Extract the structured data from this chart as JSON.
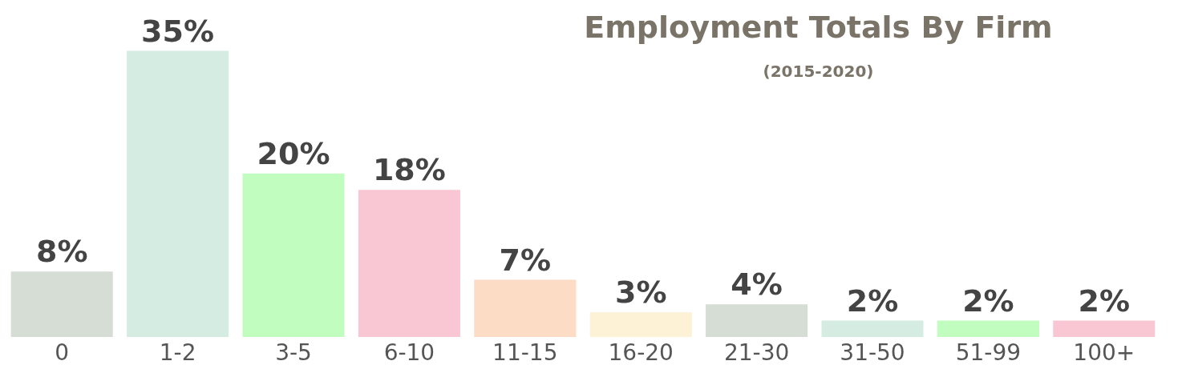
{
  "chart_data": {
    "type": "bar",
    "title": "Employment Totals By Firm",
    "subtitle": "(2015-2020)",
    "categories": [
      "0",
      "1-2",
      "3-5",
      "6-10",
      "11-15",
      "16-20",
      "21-30",
      "31-50",
      "51-99",
      "100+"
    ],
    "values": [
      8,
      35,
      20,
      18,
      7,
      3,
      4,
      2,
      2,
      2
    ],
    "value_labels": [
      "8%",
      "35%",
      "20%",
      "18%",
      "7%",
      "3%",
      "4%",
      "2%",
      "2%",
      "2%"
    ],
    "colors": [
      "#d5ddd5",
      "#d5ece3",
      "#c1fdbe",
      "#f9c6d3",
      "#fcdcc4",
      "#fdf1d6",
      "#d5ddd5",
      "#d5ece3",
      "#c1fdbe",
      "#f9c6d3"
    ],
    "legend": false
  }
}
